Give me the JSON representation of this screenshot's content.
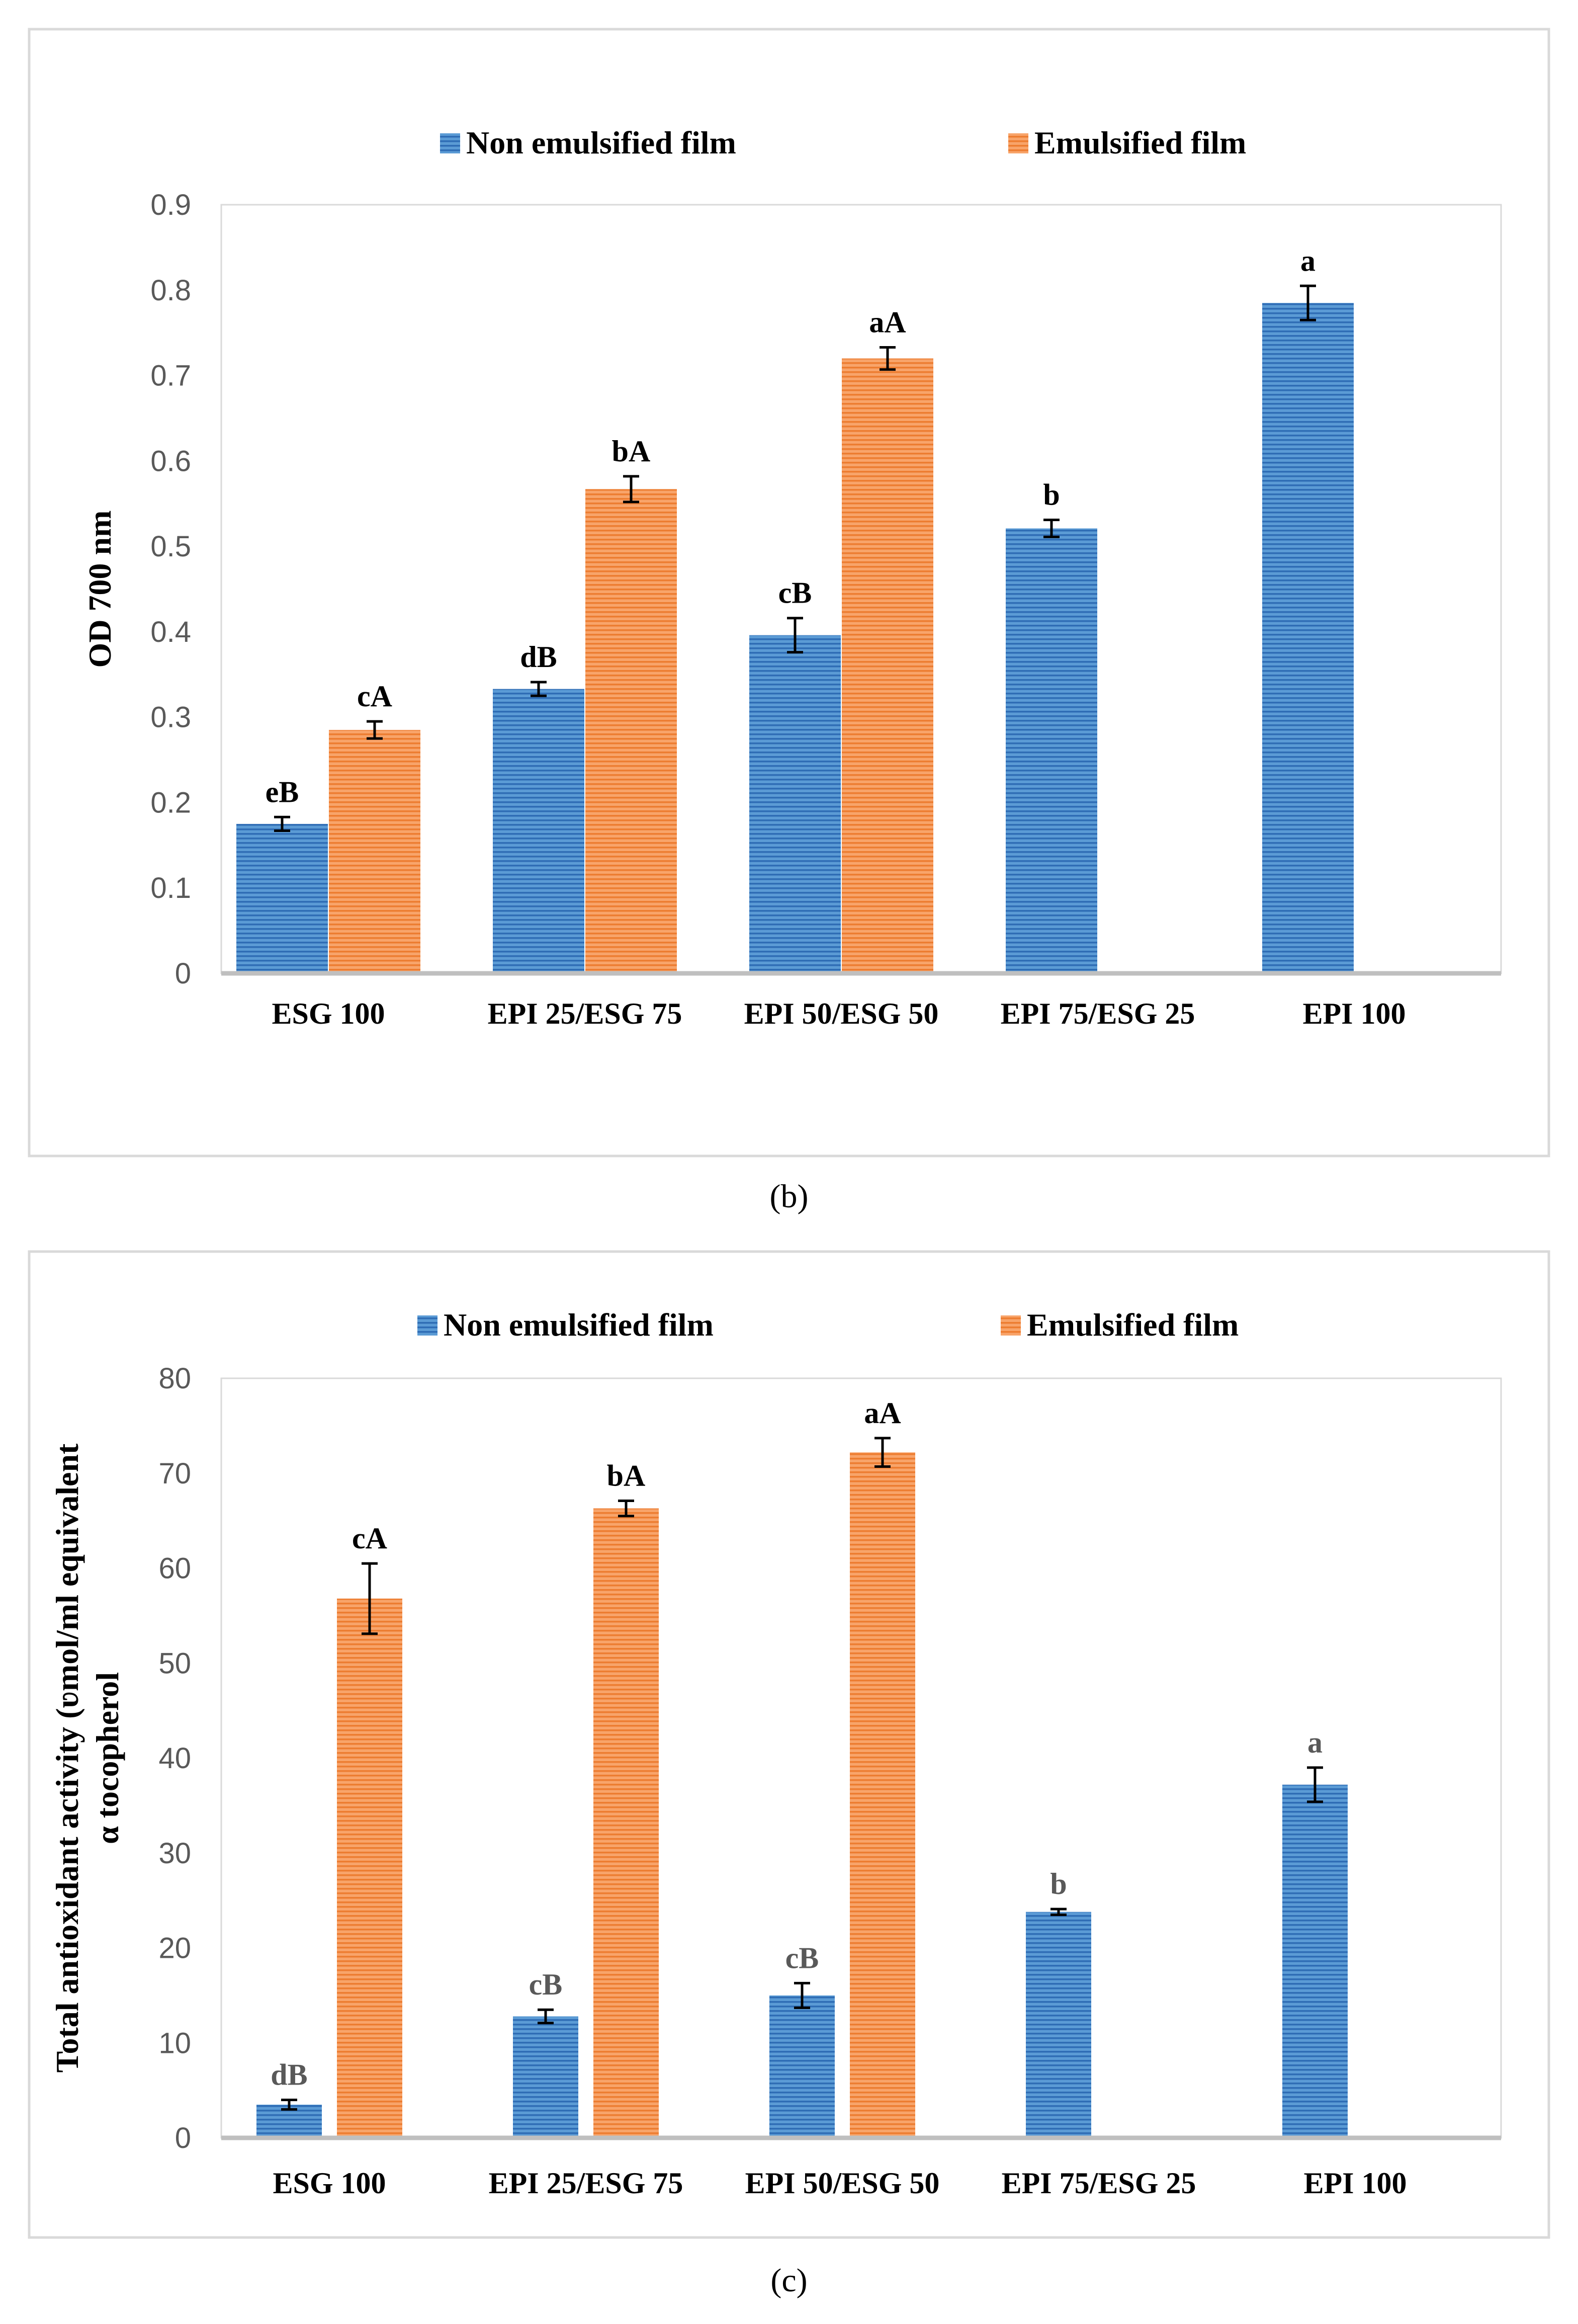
{
  "patterns": {
    "blue": {
      "base": "#5b9bd5",
      "stripe": "#2f6db5"
    },
    "orange": {
      "base": "#f8a46a",
      "stripe": "#ed7d31"
    }
  },
  "chart_data": [
    {
      "type": "bar",
      "caption": "(b)",
      "ylabel": "OD 700 nm",
      "ylim": [
        0,
        0.9
      ],
      "yticks": [
        0,
        0.1,
        0.2,
        0.3,
        0.4,
        0.5,
        0.6,
        0.7,
        0.8,
        0.9
      ],
      "ytick_labels": [
        "0",
        "0.1",
        "0.2",
        "0.3",
        "0.4",
        "0.5",
        "0.6",
        "0.7",
        "0.8",
        "0.9"
      ],
      "legend_position": "top",
      "categories": [
        "ESG 100",
        "EPI 25/ESG 75",
        "EPI 50/ESG 50",
        "EPI 75/ESG 25",
        "EPI 100"
      ],
      "series": [
        {
          "name": "Non emulsified film",
          "color": "blue",
          "values": [
            0.175,
            0.333,
            0.396,
            0.521,
            0.785
          ],
          "errors": [
            0.008,
            0.008,
            0.02,
            0.01,
            0.02
          ],
          "labels": [
            "eB",
            "dB",
            "cB",
            "b",
            "a"
          ]
        },
        {
          "name": "Emulsified film",
          "color": "orange",
          "values": [
            0.285,
            0.567,
            0.72,
            null,
            null
          ],
          "errors": [
            0.01,
            0.015,
            0.013,
            null,
            null
          ],
          "labels": [
            "cA",
            "bA",
            "aA",
            "",
            ""
          ]
        }
      ]
    },
    {
      "type": "bar",
      "caption": "(c)",
      "ylabel_lines": [
        "Total antioxidant activity (ʋmol/ml equivalent",
        "α tocopherol"
      ],
      "ylim": [
        0,
        80
      ],
      "yticks": [
        0,
        10,
        20,
        30,
        40,
        50,
        60,
        70,
        80
      ],
      "ytick_labels": [
        "0",
        "10",
        "20",
        "30",
        "40",
        "50",
        "60",
        "70",
        "80"
      ],
      "legend_position": "top",
      "categories": [
        "ESG 100",
        "EPI 25/ESG 75",
        "EPI 50/ESG 50",
        "EPI 75/ESG 25",
        "EPI 100"
      ],
      "series": [
        {
          "name": "Non emulsified film",
          "color": "blue",
          "values": [
            3.5,
            12.8,
            15.0,
            23.8,
            37.2
          ],
          "errors": [
            0.5,
            0.7,
            1.3,
            0.3,
            1.8
          ],
          "labels": [
            "dB",
            "cB",
            "cB",
            "b",
            "a"
          ]
        },
        {
          "name": "Emulsified film",
          "color": "orange",
          "values": [
            56.8,
            66.3,
            72.2,
            null,
            null
          ],
          "errors": [
            3.7,
            0.8,
            1.5,
            null,
            null
          ],
          "labels": [
            "cA",
            "bA",
            "aA",
            "",
            ""
          ]
        }
      ]
    }
  ]
}
